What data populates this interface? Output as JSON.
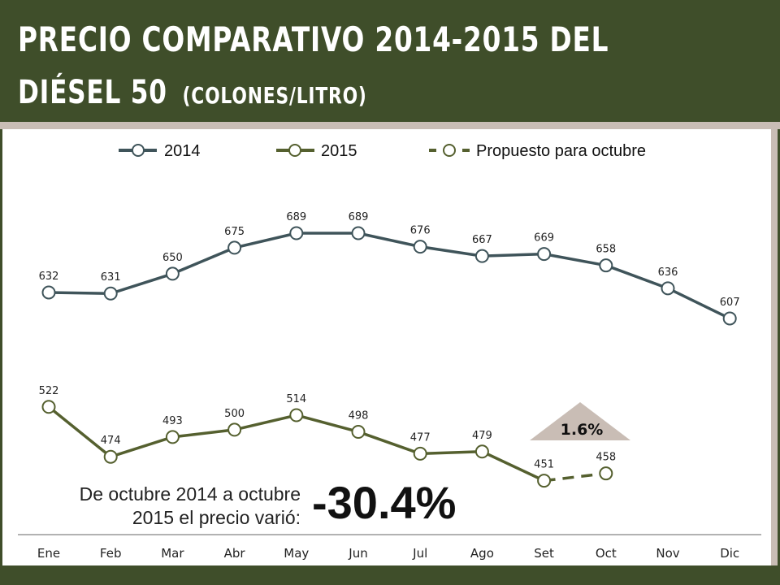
{
  "title_line1": "PRECIO COMPARATIVO 2014-2015 DEL",
  "title_line2": "DIÉSEL 50",
  "title_unit": "(COLONES/LITRO)",
  "annotation": {
    "note_line1": "De octubre 2014 a octubre",
    "note_line2": "2015 el precio varió:",
    "change": "-30.4%",
    "triangle_label": "1.6%"
  },
  "colors": {
    "s2014": "#3f545a",
    "s2015": "#55602f",
    "header": "#3f4e2a",
    "triangle": "#c9bdb5"
  },
  "chart_data": {
    "type": "line",
    "title": "Precio comparativo 2014-2015 del diésel 50 (colones/litro)",
    "categories": [
      "Ene",
      "Feb",
      "Mar",
      "Abr",
      "May",
      "Jun",
      "Jul",
      "Ago",
      "Set",
      "Oct",
      "Nov",
      "Dic"
    ],
    "series": [
      {
        "name": "2014",
        "values": [
          632,
          631,
          650,
          675,
          689,
          689,
          676,
          667,
          669,
          658,
          636,
          607
        ]
      },
      {
        "name": "2015",
        "values": [
          522,
          474,
          493,
          500,
          514,
          498,
          477,
          479,
          451,
          null,
          null,
          null
        ]
      },
      {
        "name": "Propuesto para octubre",
        "values": [
          null,
          null,
          null,
          null,
          null,
          null,
          null,
          null,
          451,
          458,
          null,
          null
        ],
        "style": "dashed"
      }
    ],
    "legend": "top",
    "grid": false
  }
}
